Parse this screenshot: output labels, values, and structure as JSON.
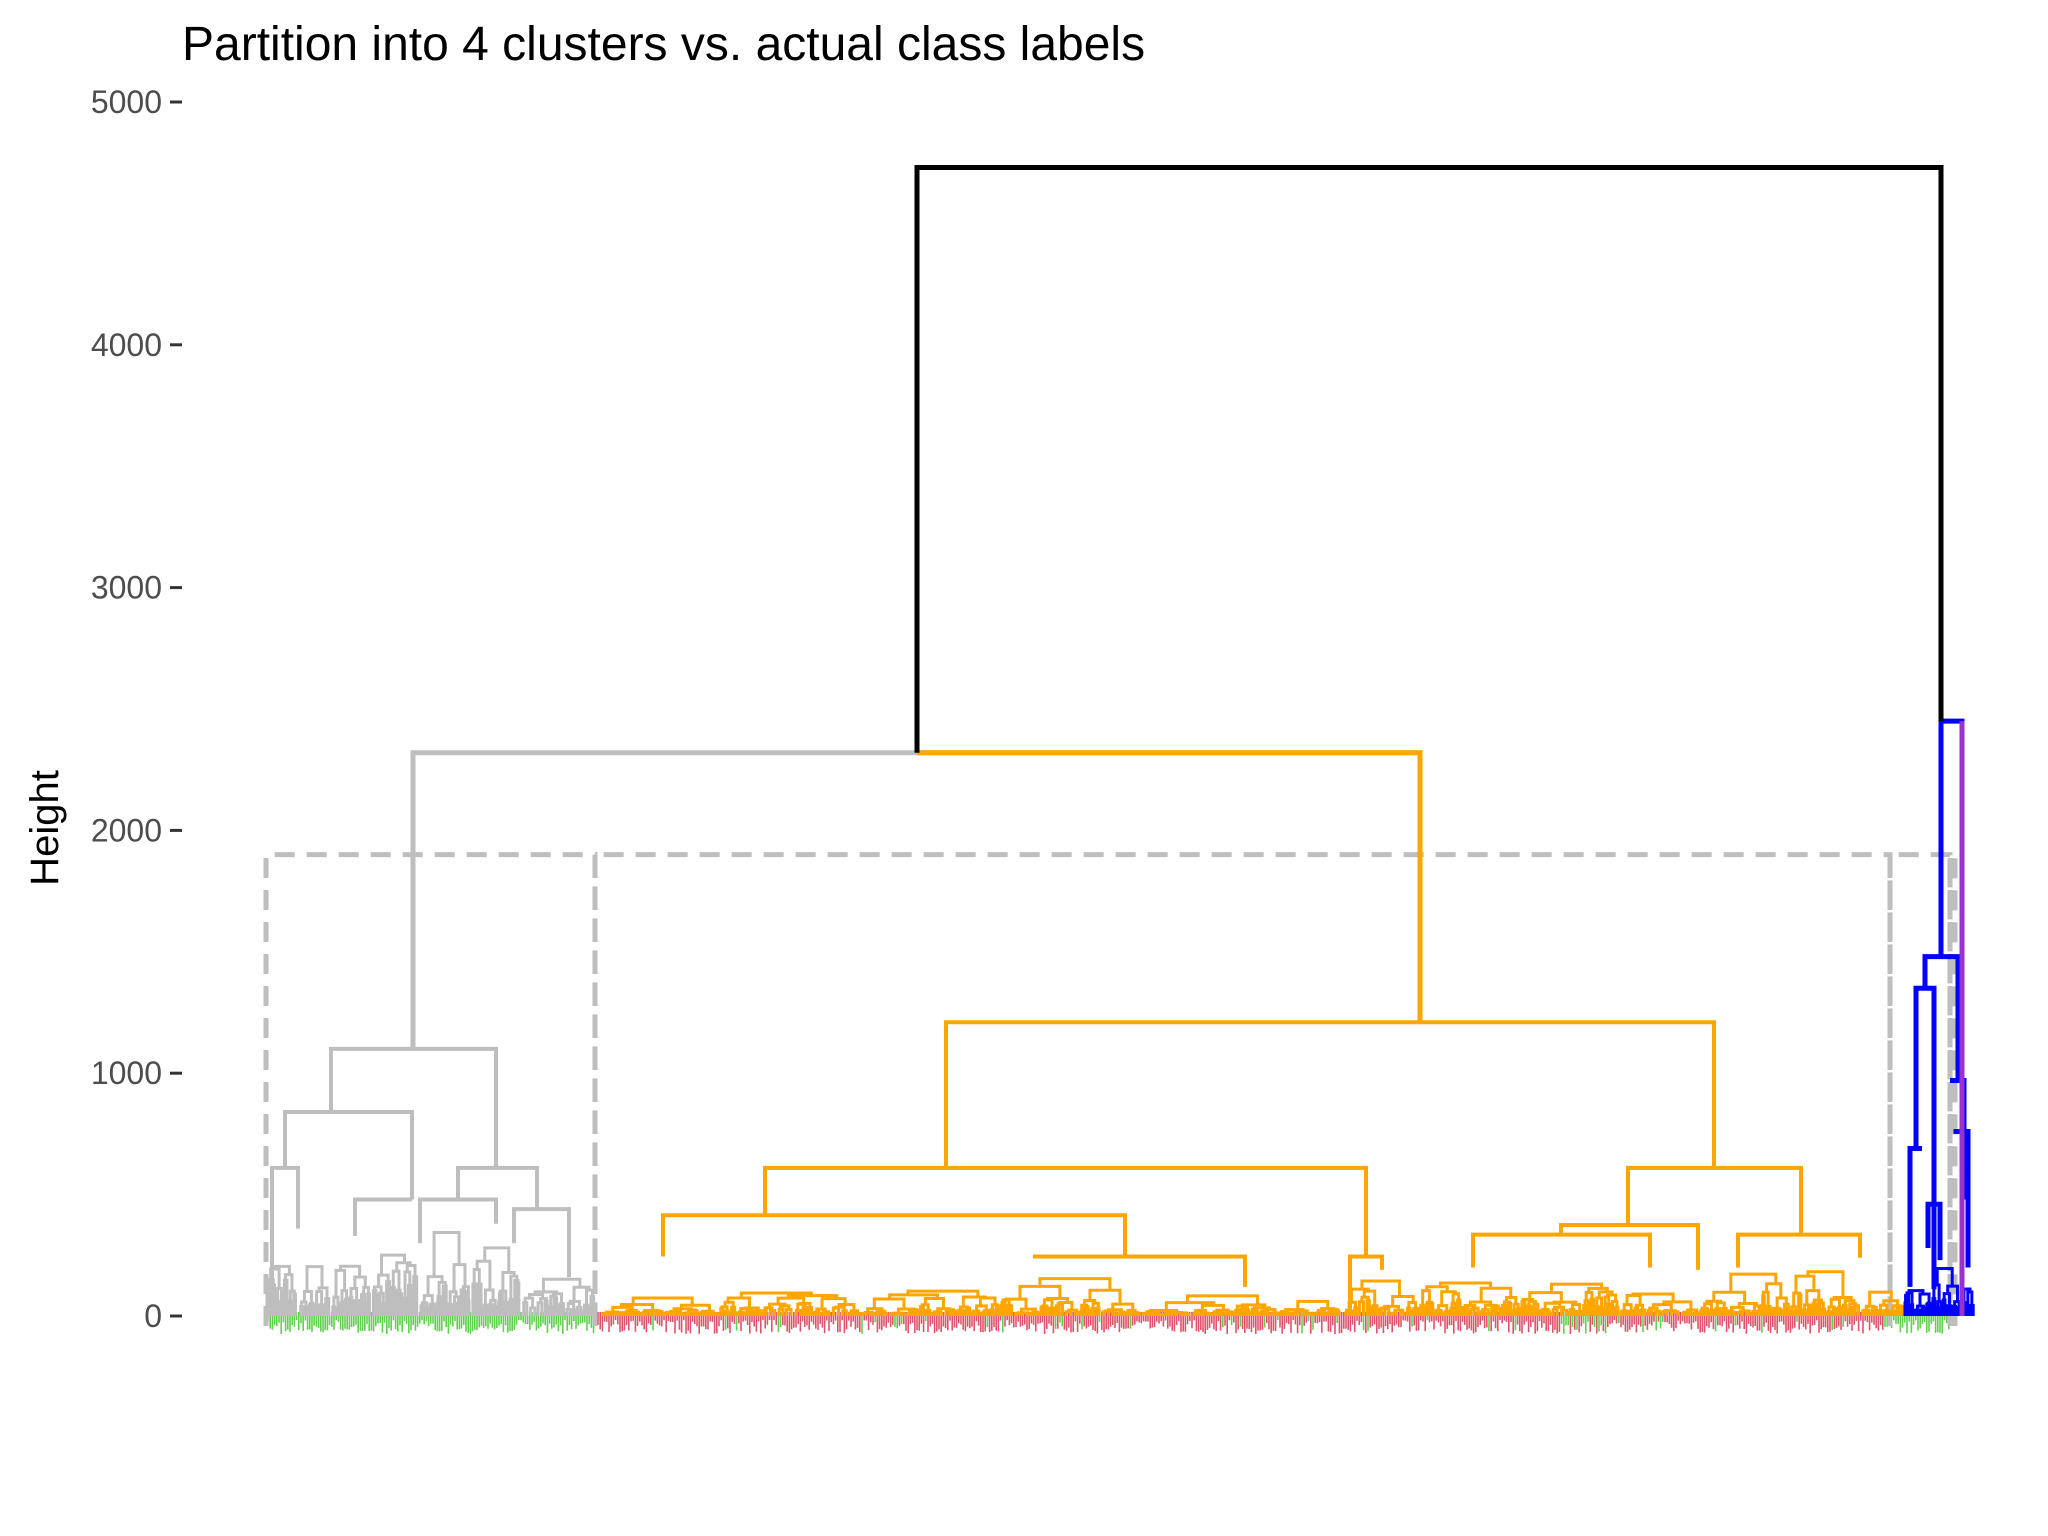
{
  "chart_data": {
    "type": "dendrogram",
    "title": "Partition into 4 clusters vs. actual class labels",
    "xlabel": "",
    "ylabel": "Height",
    "ylim": [
      0,
      5000
    ],
    "yticks": [
      0,
      1000,
      2000,
      3000,
      4000,
      5000
    ],
    "cut_height": 1900,
    "root_merge_height": 4730,
    "clusters": [
      {
        "cluster": 1,
        "color": "#bebebe",
        "merge_height": 1100
      },
      {
        "cluster": 2,
        "color": "#ffa500",
        "merge_height": 1210
      },
      {
        "cluster": 3,
        "color": "#0000ff",
        "merge_height": 1480
      },
      {
        "cluster": 4,
        "color": "#9932cc",
        "merge_height": 0
      }
    ],
    "merges": [
      {
        "id": "A",
        "height": 4730,
        "children": [
          "B",
          "C"
        ],
        "color": "#000000"
      },
      {
        "id": "B",
        "height": 2320,
        "children": [
          "cluster-1",
          "cluster-2"
        ]
      },
      {
        "id": "C",
        "height": 2450,
        "children": [
          "cluster-3",
          "cluster-4"
        ]
      },
      {
        "id": "cluster-1-sub",
        "height": 1100,
        "children": [
          840,
          610
        ]
      },
      {
        "id": "cluster-2-sub",
        "height": 1210,
        "children": [
          610,
          610
        ]
      },
      {
        "id": "cluster-2-left",
        "height": 610,
        "children": [
          415,
          245
        ]
      },
      {
        "id": "cluster-2-right",
        "height": 610,
        "children": [
          375,
          335
        ]
      },
      {
        "id": "cluster-3-sub",
        "height": 1480,
        "children": [
          1350,
          970
        ]
      }
    ],
    "label_colors": {
      "class_a": "#61d04f",
      "class_b": "#df536b"
    },
    "colors": {
      "root": "#000000",
      "cut_rect": "#bebebe"
    }
  }
}
